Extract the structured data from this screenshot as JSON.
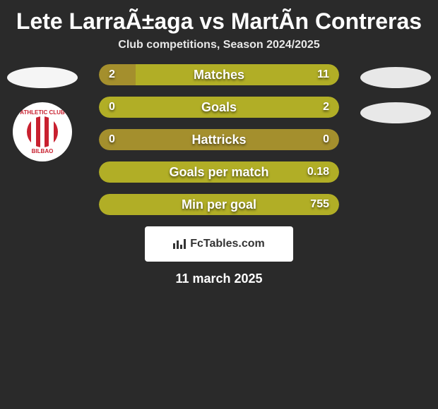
{
  "title": "Lete LarraÃ±aga vs MartÃ­n Contreras",
  "subtitle": "Club competitions, Season 2024/2025",
  "date": "11 march 2025",
  "logo_text": "FcTables.com",
  "colors": {
    "background": "#2a2a2a",
    "player1_bar": "#a48f2d",
    "player2_bar": "#b1ae26",
    "oval": "#f5f5f5",
    "badge_red": "#c8202f",
    "text": "#ffffff"
  },
  "badge": {
    "top_text": "ATHLETIC CLUB",
    "bottom_text": "BILBAO"
  },
  "stats": [
    {
      "label": "Matches",
      "left_value": "2",
      "right_value": "11",
      "left_pct": 15.4,
      "right_pct": 84.6,
      "mode": "split"
    },
    {
      "label": "Goals",
      "left_value": "0",
      "right_value": "2",
      "left_pct": 0,
      "right_pct": 100,
      "mode": "right-only"
    },
    {
      "label": "Hattricks",
      "left_value": "0",
      "right_value": "0",
      "left_pct": 100,
      "right_pct": 0,
      "mode": "left-only"
    },
    {
      "label": "Goals per match",
      "left_value": "",
      "right_value": "0.18",
      "left_pct": 0,
      "right_pct": 100,
      "mode": "right-only"
    },
    {
      "label": "Min per goal",
      "left_value": "",
      "right_value": "755",
      "left_pct": 0,
      "right_pct": 100,
      "mode": "right-only"
    }
  ]
}
